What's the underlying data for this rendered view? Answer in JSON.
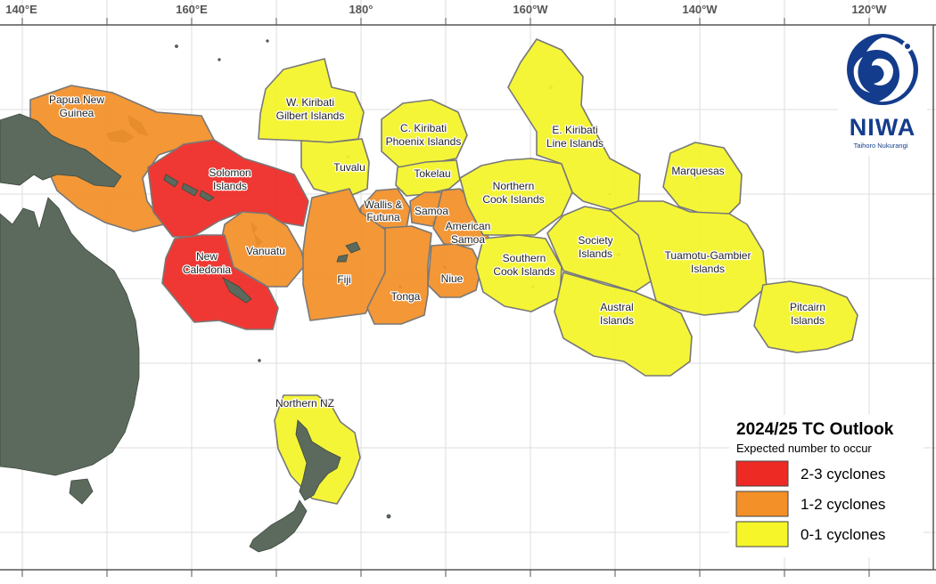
{
  "map": {
    "longitude_ticks": [
      "140°E",
      "160°E",
      "180°",
      "160°W",
      "140°W",
      "120°W"
    ],
    "regions": [
      {
        "id": "papua-new-guinea",
        "lines": [
          "Papua New",
          "Guinea"
        ],
        "category": "1-2"
      },
      {
        "id": "solomon-islands",
        "lines": [
          "Solomon",
          "Islands"
        ],
        "category": "2-3"
      },
      {
        "id": "vanuatu",
        "lines": [
          "Vanuatu"
        ],
        "category": "1-2"
      },
      {
        "id": "new-caledonia",
        "lines": [
          "New",
          "Caledonia"
        ],
        "category": "2-3"
      },
      {
        "id": "w-kiribati",
        "lines": [
          "W. Kiribati",
          "Gilbert Islands"
        ],
        "category": "0-1"
      },
      {
        "id": "tuvalu",
        "lines": [
          "Tuvalu"
        ],
        "category": "0-1"
      },
      {
        "id": "c-kiribati",
        "lines": [
          "C. Kiribati",
          "Phoenix Islands"
        ],
        "category": "0-1"
      },
      {
        "id": "tokelau",
        "lines": [
          "Tokelau"
        ],
        "category": "0-1"
      },
      {
        "id": "wallis-futuna",
        "lines": [
          "Wallis &",
          "Futuna"
        ],
        "category": "1-2"
      },
      {
        "id": "samoa",
        "lines": [
          "Samoa"
        ],
        "category": "1-2"
      },
      {
        "id": "american-samoa",
        "lines": [
          "American",
          "Samoa"
        ],
        "category": "1-2"
      },
      {
        "id": "fiji",
        "lines": [
          "Fiji"
        ],
        "category": "1-2"
      },
      {
        "id": "tonga",
        "lines": [
          "Tonga"
        ],
        "category": "1-2"
      },
      {
        "id": "niue",
        "lines": [
          "Niue"
        ],
        "category": "1-2"
      },
      {
        "id": "northern-cook-islands",
        "lines": [
          "Northern",
          "Cook Islands"
        ],
        "category": "0-1"
      },
      {
        "id": "southern-cook-islands",
        "lines": [
          "Southern",
          "Cook Islands"
        ],
        "category": "0-1"
      },
      {
        "id": "e-kiribati",
        "lines": [
          "E. Kiribati",
          "Line Islands"
        ],
        "category": "0-1"
      },
      {
        "id": "marquesas",
        "lines": [
          "Marquesas"
        ],
        "category": "0-1"
      },
      {
        "id": "society-islands",
        "lines": [
          "Society",
          "Islands"
        ],
        "category": "0-1"
      },
      {
        "id": "tuamotu-gambier",
        "lines": [
          "Tuamotu-Gambier",
          "Islands"
        ],
        "category": "0-1"
      },
      {
        "id": "austral-islands",
        "lines": [
          "Austral",
          "Islands"
        ],
        "category": "0-1"
      },
      {
        "id": "pitcairn-islands",
        "lines": [
          "Pitcairn",
          "Islands"
        ],
        "category": "0-1"
      },
      {
        "id": "northern-nz",
        "lines": [
          "Northern NZ"
        ],
        "category": "0-1"
      }
    ]
  },
  "legend": {
    "title": "2024/25 TC Outlook",
    "subtitle": "Expected number to occur",
    "items": [
      {
        "key": "2-3",
        "label": "2-3 cyclones",
        "color": "#ee2a24"
      },
      {
        "key": "1-2",
        "label": "1-2 cyclones",
        "color": "#f39028"
      },
      {
        "key": "0-1",
        "label": "0-1 cyclones",
        "color": "#f5f52a"
      }
    ]
  },
  "logo": {
    "name": "NIWA",
    "tagline": "Taihoro Nukurangi"
  },
  "colors": {
    "land": "#5b6a5c",
    "region_outline": "#6e6e6e",
    "grid": "#dddddd"
  }
}
